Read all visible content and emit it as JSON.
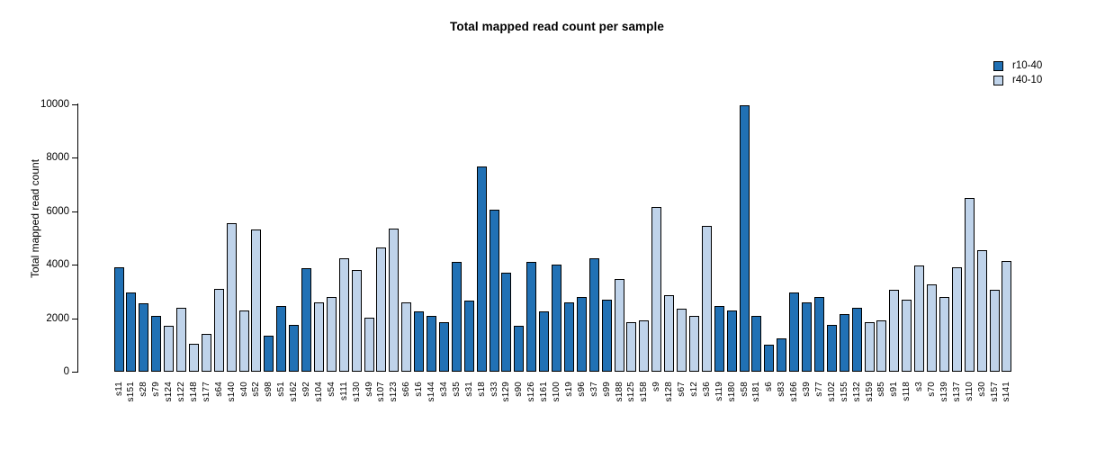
{
  "title": "Total mapped read count per sample",
  "y_axis": {
    "label": "Total mapped read count",
    "ticks": [
      0,
      2000,
      4000,
      6000,
      8000,
      10000
    ]
  },
  "legend": [
    {
      "label": "r10-40",
      "color": "#2171b5"
    },
    {
      "label": "r40-10",
      "color": "#bfd3ea"
    }
  ],
  "chart_data": {
    "type": "bar",
    "title": "Total mapped read count per sample",
    "xlabel": "",
    "ylabel": "Total mapped read count",
    "ylim": [
      0,
      10000
    ],
    "grid": false,
    "legend_position": "top-right",
    "series_colors": {
      "r10-40": "#2171b5",
      "r40-10": "#bfd3ea"
    },
    "categories": [
      "s11",
      "s151",
      "s28",
      "s79",
      "s124",
      "s122",
      "s148",
      "s177",
      "s64",
      "s140",
      "s40",
      "s52",
      "s98",
      "s51",
      "s162",
      "s92",
      "s104",
      "s54",
      "s111",
      "s130",
      "s49",
      "s107",
      "s123",
      "s66",
      "s16",
      "s144",
      "s34",
      "s35",
      "s31",
      "s18",
      "s33",
      "s129",
      "s90",
      "s126",
      "s161",
      "s100",
      "s19",
      "s96",
      "s37",
      "s99",
      "s188",
      "s125",
      "s158",
      "s9",
      "s128",
      "s67",
      "s12",
      "s36",
      "s119",
      "s180",
      "s58",
      "s181",
      "s6",
      "s83",
      "s166",
      "s39",
      "s77",
      "s102",
      "s155",
      "s132",
      "s159",
      "s85",
      "s91",
      "s118",
      "s3",
      "s70",
      "s139",
      "s137",
      "s110",
      "s30",
      "s157",
      "s141"
    ],
    "values": [
      3900,
      2950,
      2550,
      2100,
      1700,
      2400,
      1050,
      1400,
      3100,
      5550,
      2300,
      5300,
      1350,
      2450,
      1750,
      3850,
      2600,
      2800,
      4250,
      3800,
      2000,
      4650,
      5350,
      2600,
      2250,
      2100,
      1850,
      4100,
      2650,
      7650,
      6050,
      3700,
      1700,
      4100,
      2250,
      4000,
      2600,
      2800,
      4250,
      2700,
      3450,
      1850,
      1900,
      6150,
      2850,
      2350,
      2100,
      5450,
      2450,
      2300,
      9950,
      2100,
      1000,
      1250,
      2950,
      2600,
      2800,
      1750,
      2150,
      2400,
      1850,
      1900,
      3050,
      2700,
      3950,
      3250,
      2800,
      3900,
      6500,
      4550,
      3050,
      4150
    ],
    "bar_series": [
      "r10-40",
      "r10-40",
      "r10-40",
      "r10-40",
      "r40-10",
      "r40-10",
      "r40-10",
      "r40-10",
      "r40-10",
      "r40-10",
      "r40-10",
      "r40-10",
      "r10-40",
      "r10-40",
      "r10-40",
      "r10-40",
      "r40-10",
      "r40-10",
      "r40-10",
      "r40-10",
      "r40-10",
      "r40-10",
      "r40-10",
      "r40-10",
      "r10-40",
      "r10-40",
      "r10-40",
      "r10-40",
      "r10-40",
      "r10-40",
      "r10-40",
      "r10-40",
      "r10-40",
      "r10-40",
      "r10-40",
      "r10-40",
      "r10-40",
      "r10-40",
      "r10-40",
      "r10-40",
      "r40-10",
      "r40-10",
      "r40-10",
      "r40-10",
      "r40-10",
      "r40-10",
      "r40-10",
      "r40-10",
      "r10-40",
      "r10-40",
      "r10-40",
      "r10-40",
      "r10-40",
      "r10-40",
      "r10-40",
      "r10-40",
      "r10-40",
      "r10-40",
      "r10-40",
      "r10-40",
      "r40-10",
      "r40-10",
      "r40-10",
      "r40-10",
      "r40-10",
      "r40-10",
      "r40-10",
      "r40-10",
      "r40-10",
      "r40-10",
      "r40-10",
      "r40-10"
    ]
  }
}
